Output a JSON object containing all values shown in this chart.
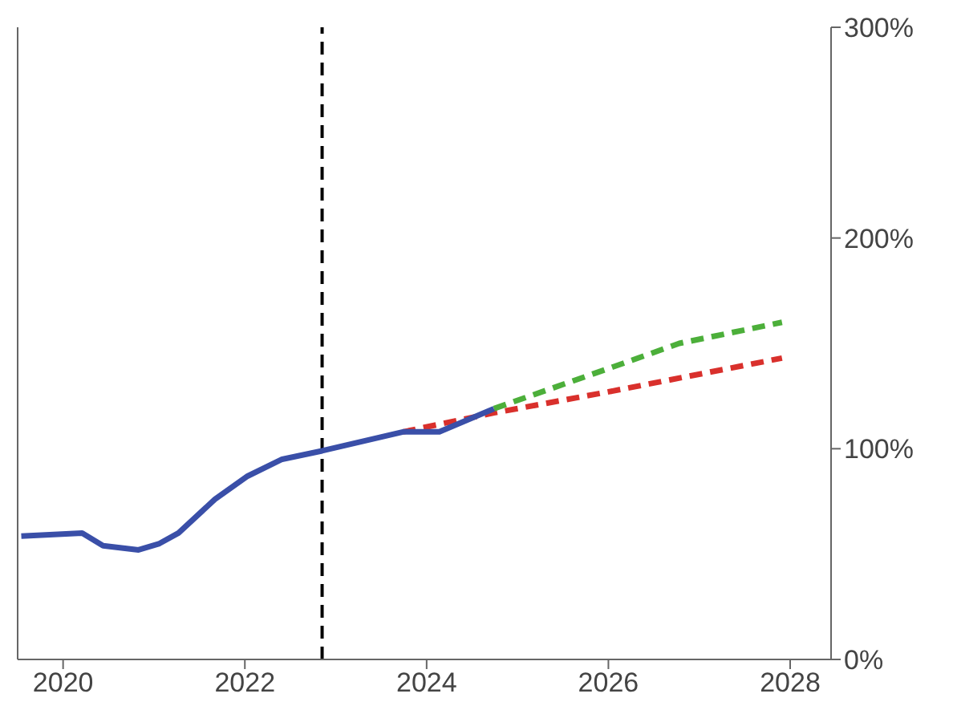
{
  "chart_data": {
    "type": "line",
    "xlim": [
      2019.5,
      2028.45
    ],
    "xticks": [
      2020,
      2022,
      2024,
      2026,
      2028
    ],
    "ylim": [
      0,
      300
    ],
    "yticks": [
      {
        "value": 0,
        "label": "0%"
      },
      {
        "value": 100,
        "label": "100%"
      },
      {
        "value": 200,
        "label": "200%"
      },
      {
        "value": 300,
        "label": "300%"
      }
    ],
    "grid": false,
    "legend": false,
    "marker": "none",
    "series": [
      {
        "color": "#d9302c",
        "line_style": "dashed",
        "x": [
          2023.74,
          2024.74,
          2026,
          2027.91
        ],
        "values": [
          108,
          117,
          127,
          143
        ]
      },
      {
        "color": "#4caf3a",
        "line_style": "dashed",
        "x": [
          2024.74,
          2026.26,
          2026.78,
          2027.91
        ],
        "values": [
          119,
          142,
          150,
          160
        ]
      },
      {
        "color": "#3a4fa8",
        "line_style": "solid",
        "x": [
          2019.54,
          2020.21,
          2020.44,
          2020.83,
          2021.06,
          2021.27,
          2021.67,
          2022.03,
          2022.41,
          2022.85,
          2023.74,
          2024.14,
          2024.74
        ],
        "values": [
          58.5,
          60,
          54,
          52,
          55,
          60,
          76,
          87,
          95,
          99,
          108,
          108,
          119
        ]
      }
    ],
    "ref_lines": [
      {
        "axis": "x",
        "value": 2022.85,
        "color": "#000000",
        "line_style": "dashed"
      }
    ]
  }
}
